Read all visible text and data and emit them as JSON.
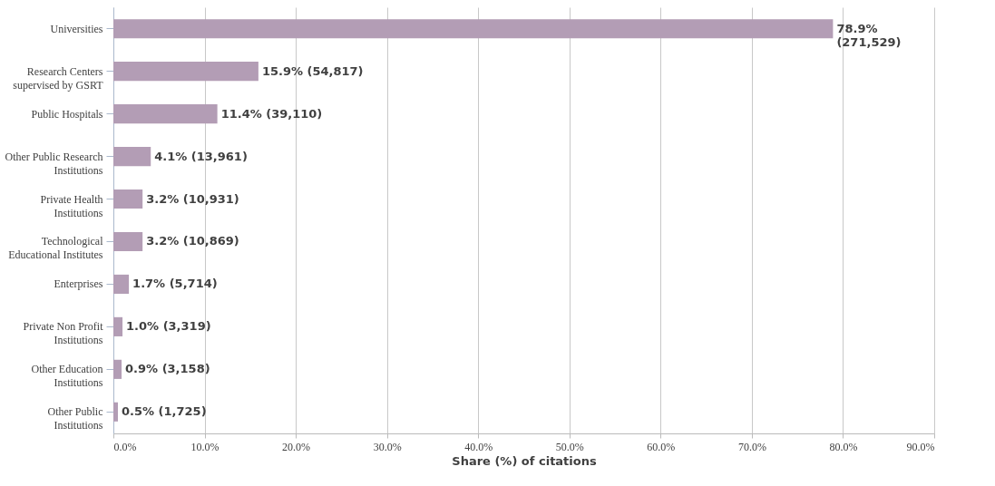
{
  "chart_data": {
    "type": "bar",
    "orientation": "horizontal",
    "xlabel": "Share (%) of citations",
    "categories": [
      "Universities",
      "Research Centers supervised by GSRT",
      "Public Hospitals",
      "Other Public Research Institutions",
      "Private Health Institutions",
      "Technological Educational Institutes",
      "Enterprises",
      "Private Non Profit Institutions",
      "Other Education Institutions",
      "Other Public Institutions"
    ],
    "values": [
      78.9,
      15.9,
      11.4,
      4.1,
      3.2,
      3.2,
      1.7,
      1.0,
      0.9,
      0.5
    ],
    "value_labels": [
      "78.9% (271,529)",
      "15.9% (54,817)",
      "11.4% (39,110)",
      "4.1% (13,961)",
      "3.2% (10,931)",
      "3.2% (10,869)",
      "1.7% (5,714)",
      "1.0% (3,319)",
      "0.9% (3,158)",
      "0.5% (1,725)"
    ],
    "color": "#b39db5",
    "xlim": [
      0,
      90
    ],
    "xticks": [
      {
        "value": 0,
        "label": "0.0%"
      },
      {
        "value": 10,
        "label": "10.0%"
      },
      {
        "value": 20,
        "label": "20.0%"
      },
      {
        "value": 30,
        "label": "30.0%"
      },
      {
        "value": 40,
        "label": "40.0%"
      },
      {
        "value": 50,
        "label": "50.0%"
      },
      {
        "value": 60,
        "label": "60.0%"
      },
      {
        "value": 70,
        "label": "70.0%"
      },
      {
        "value": 80,
        "label": "80.0%"
      },
      {
        "value": 90,
        "label": "90.0%"
      }
    ],
    "grid": "x"
  }
}
